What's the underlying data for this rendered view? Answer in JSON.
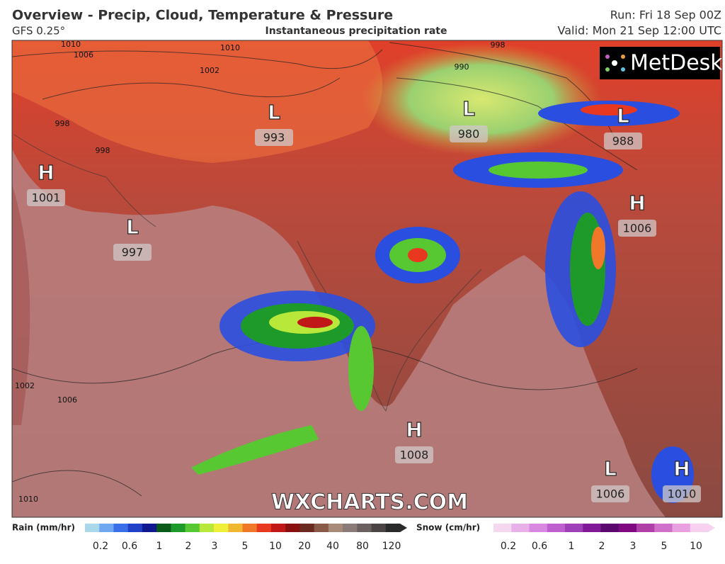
{
  "header": {
    "title": "Overview - Precip, Cloud, Temperature & Pressure",
    "model": "GFS 0.25°",
    "product": "Instantaneous precipitation rate",
    "run": "Run: Fri 18 Sep 00Z",
    "valid": "Valid: Mon 21 Sep 12:00 UTC"
  },
  "logo": "MetDesk",
  "watermark": "WXCHARTS.COM",
  "pressure_systems": [
    {
      "type": "H",
      "value": 1001
    },
    {
      "type": "L",
      "value": 997
    },
    {
      "type": "L",
      "value": 993
    },
    {
      "type": "L",
      "value": 980
    },
    {
      "type": "L",
      "value": 988
    },
    {
      "type": "H",
      "value": 1006
    },
    {
      "type": "H",
      "value": 1008
    },
    {
      "type": "L",
      "value": 1006
    },
    {
      "type": "H",
      "value": 1010
    }
  ],
  "isobar_labels": [
    1010,
    1006,
    1010,
    1002,
    998,
    990,
    998,
    998,
    1002,
    1006,
    1010
  ],
  "legend": {
    "rain": {
      "label": "Rain (mm/hr)",
      "ticks": [
        0.2,
        0.6,
        1,
        2,
        3,
        5,
        10,
        20,
        40,
        80,
        120
      ],
      "colors": [
        "#a8d8ea",
        "#6fa8f0",
        "#3a6fe8",
        "#2040c8",
        "#101890",
        "#0a5a1a",
        "#1e9a2a",
        "#58c832",
        "#b8e83a",
        "#f0f03a",
        "#f0b830",
        "#f07828",
        "#e83820",
        "#c01818",
        "#8a1010",
        "#6a2a20",
        "#8a5a48",
        "#a88a78",
        "#8a7a78",
        "#6a6060",
        "#4a4444",
        "#2a2a2a"
      ]
    },
    "snow": {
      "label": "Snow (cm/hr)",
      "ticks": [
        0.2,
        0.6,
        1,
        2,
        3,
        5,
        10
      ],
      "colors": [
        "#f4d8f0",
        "#e8b0e8",
        "#d888e0",
        "#c060d0",
        "#a040b8",
        "#801898",
        "#5a0870",
        "#800880",
        "#b040a8",
        "#d070c8",
        "#e8a0e0",
        "#f8d0f0"
      ]
    }
  }
}
